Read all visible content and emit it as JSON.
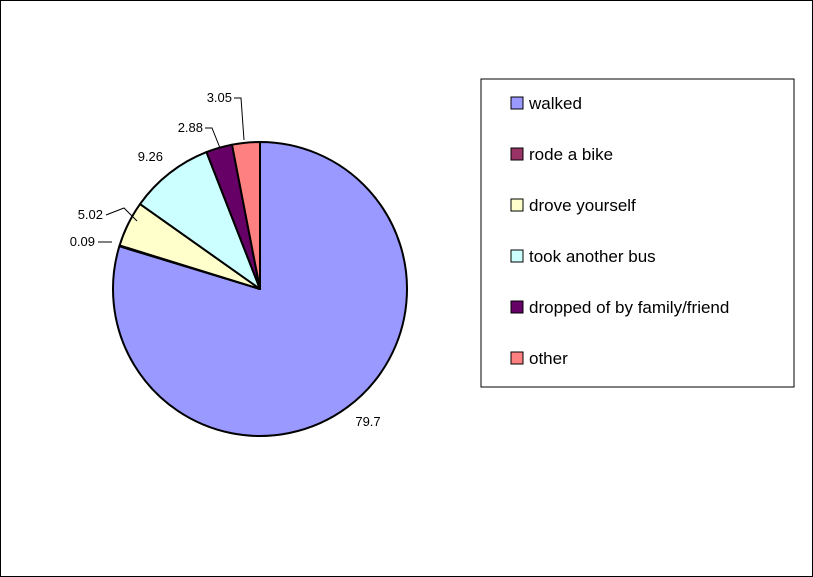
{
  "chart_data": {
    "type": "pie",
    "title": "",
    "legend_position": "right",
    "series": [
      {
        "slices": [
          {
            "label": "walked",
            "value": 79.7,
            "value_label": "79.7",
            "color": "#9999ff"
          },
          {
            "label": "rode a bike",
            "value": 0.09,
            "value_label": "0.09",
            "color": "#993366"
          },
          {
            "label": "drove yourself",
            "value": 5.02,
            "value_label": "5.02",
            "color": "#ffffcc"
          },
          {
            "label": "took another bus",
            "value": 9.26,
            "value_label": "9.26",
            "color": "#ccffff"
          },
          {
            "label": "dropped of by family/friend",
            "value": 2.88,
            "value_label": "2.88",
            "color": "#660066"
          },
          {
            "label": "other",
            "value": 3.05,
            "value_label": "3.05",
            "color": "#ff8080"
          }
        ]
      }
    ]
  }
}
